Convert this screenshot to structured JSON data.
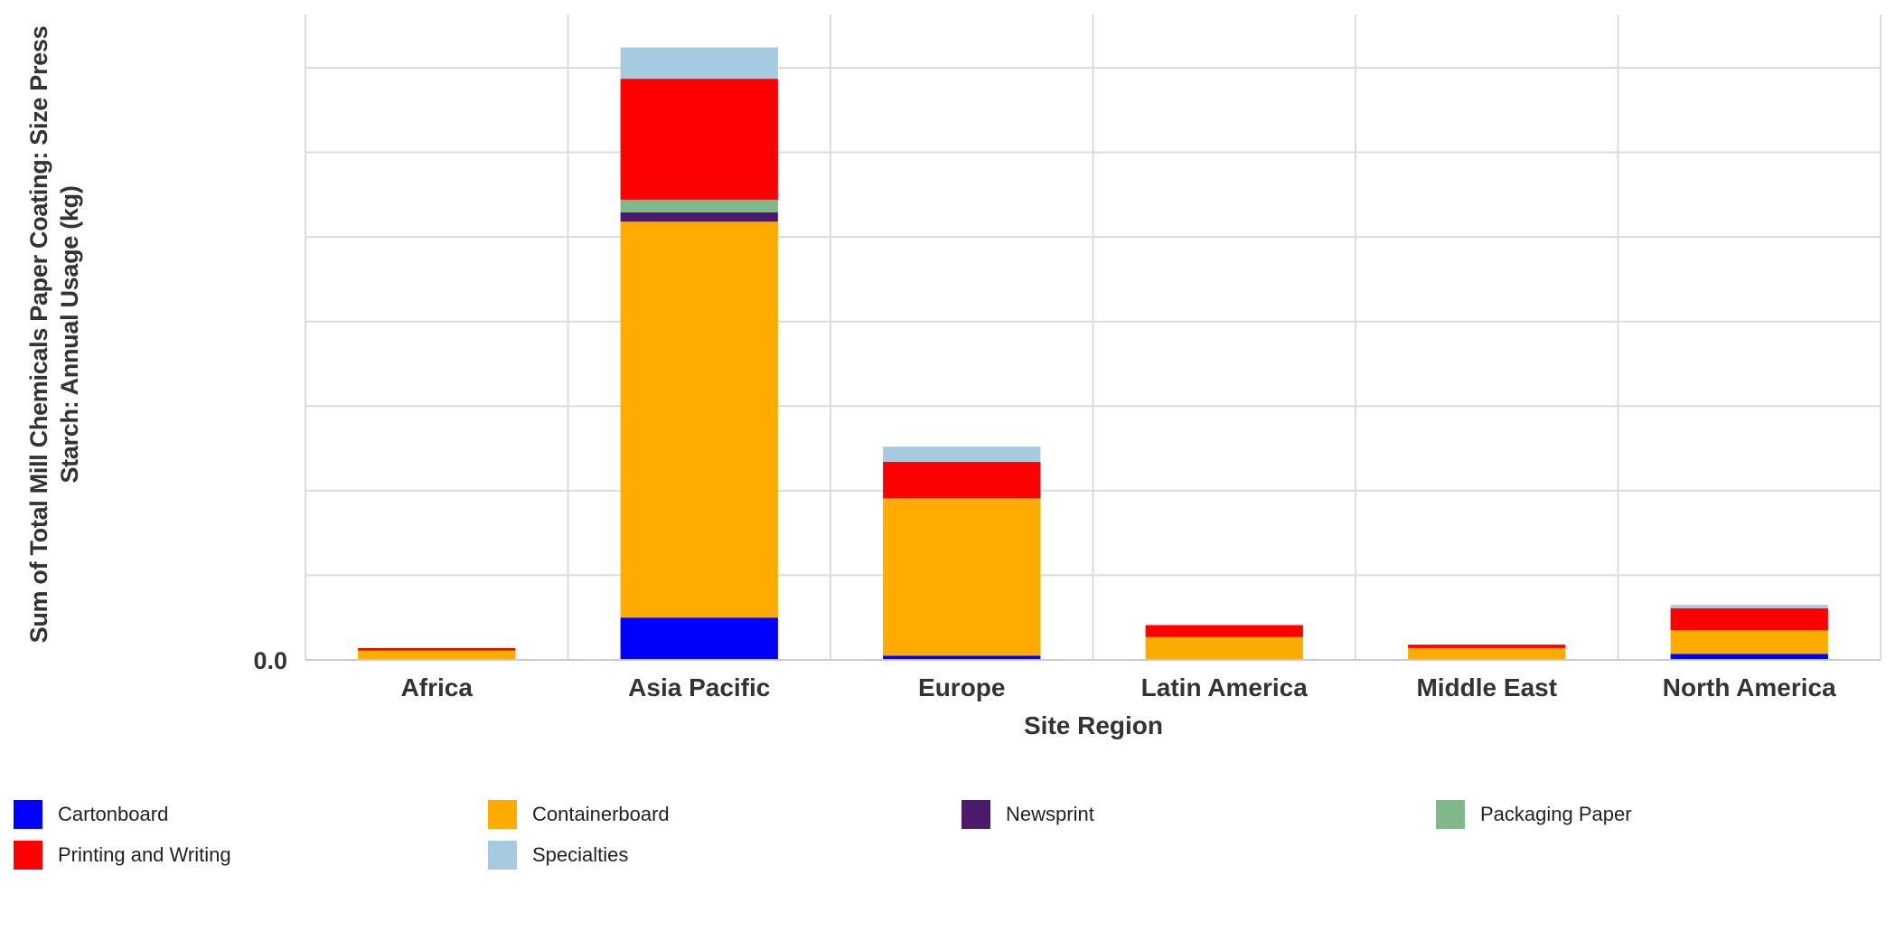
{
  "chart_data": {
    "type": "bar",
    "stacked": true,
    "title": "",
    "xlabel": "Site Region",
    "ylabel_lines": [
      "Sum of Total Mill Chemicals Paper Coating: Size Press",
      "Starch: Annual Usage (kg)"
    ],
    "ylabel": "Sum of Total Mill Chemicals Paper Coating: Size Press Starch: Annual Usage (kg)",
    "y_tick_labels_visible": [
      "0.0"
    ],
    "y_units_note": "Values expressed in gridline units (tick labels other than 0.0 are not rendered in the image); 1 unit = one horizontal gridline interval",
    "ylim": [
      0,
      7.63
    ],
    "y_gridlines": [
      0,
      1,
      2,
      3,
      4,
      5,
      6,
      7
    ],
    "grid": true,
    "legend_position": "bottom",
    "categories": [
      "Africa",
      "Asia Pacific",
      "Europe",
      "Latin America",
      "Middle East",
      "North America"
    ],
    "series": [
      {
        "name": "Cartonboard",
        "color": "#0000ff",
        "values": [
          0,
          0.5,
          0.05,
          0,
          0,
          0.07
        ]
      },
      {
        "name": "Containerboard",
        "color": "#ffab00",
        "values": [
          0.11,
          4.68,
          1.85,
          0.27,
          0.14,
          0.28
        ]
      },
      {
        "name": "Newsprint",
        "color": "#4a1a6e",
        "values": [
          0,
          0.11,
          0,
          0,
          0,
          0
        ]
      },
      {
        "name": "Packaging Paper",
        "color": "#7fb98a",
        "values": [
          0,
          0.15,
          0.01,
          0,
          0,
          0
        ]
      },
      {
        "name": "Printing and Writing",
        "color": "#ff0000",
        "values": [
          0.03,
          1.43,
          0.43,
          0.14,
          0.04,
          0.26
        ]
      },
      {
        "name": "Specialties",
        "color": "#a6cbe0",
        "values": [
          0,
          0.37,
          0.18,
          0.01,
          0,
          0.04
        ]
      }
    ]
  },
  "axis": {
    "y_title_line1": "Sum of Total Mill Chemicals Paper Coating: Size Press",
    "y_title_line2": "Starch: Annual Usage (kg)",
    "y_zero_label": "0.0",
    "x_title": "Site Region"
  },
  "legend": {
    "items": [
      {
        "label": "Cartonboard",
        "color": "#0000ff"
      },
      {
        "label": "Containerboard",
        "color": "#ffab00"
      },
      {
        "label": "Newsprint",
        "color": "#4a1a6e"
      },
      {
        "label": "Packaging Paper",
        "color": "#7fb98a"
      },
      {
        "label": "Printing and Writing",
        "color": "#ff0000"
      },
      {
        "label": "Specialties",
        "color": "#a6cbe0"
      }
    ]
  },
  "style": {
    "grid_color": "#dcdce0",
    "axis_color": "#c8c8d8",
    "text_color": "#333333"
  }
}
